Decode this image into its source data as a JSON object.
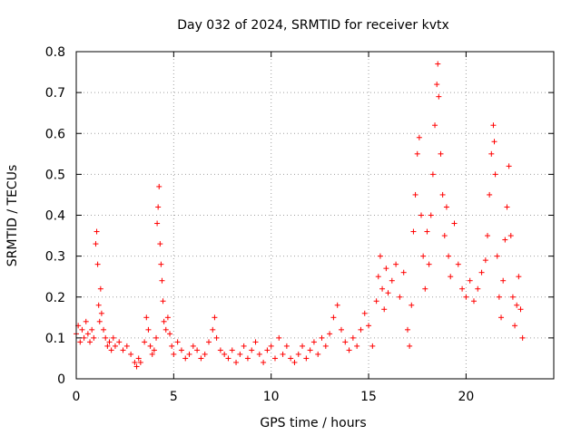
{
  "chart_data": {
    "type": "scatter",
    "title": "Day 032 of 2024, SRMTID for receiver kvtx",
    "xlabel": "GPS time / hours",
    "ylabel": "SRMTID / TECUs",
    "xlim": [
      0,
      24.5
    ],
    "ylim": [
      0,
      0.8
    ],
    "xticks": [
      0,
      5,
      10,
      15,
      20
    ],
    "xtick_labels": [
      "0",
      "5",
      "10",
      "15",
      "20"
    ],
    "yticks": [
      0,
      0.1,
      0.2,
      0.3,
      0.4,
      0.5,
      0.6,
      0.7,
      0.8
    ],
    "ytick_labels": [
      "0",
      "0.1",
      "0.2",
      "0.3",
      "0.4",
      "0.5",
      "0.6",
      "0.7",
      "0.8"
    ],
    "grid": true,
    "marker": "plus",
    "color": "#ff0000",
    "series": [
      {
        "name": "SRMTID",
        "points": [
          [
            0.0,
            0.11
          ],
          [
            0.1,
            0.13
          ],
          [
            0.2,
            0.09
          ],
          [
            0.3,
            0.12
          ],
          [
            0.4,
            0.1
          ],
          [
            0.5,
            0.14
          ],
          [
            0.6,
            0.11
          ],
          [
            0.7,
            0.09
          ],
          [
            0.8,
            0.12
          ],
          [
            0.9,
            0.1
          ],
          [
            1.0,
            0.33
          ],
          [
            1.05,
            0.36
          ],
          [
            1.1,
            0.28
          ],
          [
            1.15,
            0.18
          ],
          [
            1.2,
            0.14
          ],
          [
            1.25,
            0.22
          ],
          [
            1.3,
            0.16
          ],
          [
            1.4,
            0.12
          ],
          [
            1.5,
            0.1
          ],
          [
            1.6,
            0.08
          ],
          [
            1.7,
            0.09
          ],
          [
            1.8,
            0.07
          ],
          [
            1.9,
            0.1
          ],
          [
            2.0,
            0.08
          ],
          [
            2.2,
            0.09
          ],
          [
            2.4,
            0.07
          ],
          [
            2.6,
            0.08
          ],
          [
            2.8,
            0.06
          ],
          [
            3.0,
            0.04
          ],
          [
            3.1,
            0.03
          ],
          [
            3.2,
            0.05
          ],
          [
            3.3,
            0.04
          ],
          [
            3.5,
            0.09
          ],
          [
            3.6,
            0.15
          ],
          [
            3.7,
            0.12
          ],
          [
            3.8,
            0.08
          ],
          [
            3.9,
            0.06
          ],
          [
            4.0,
            0.07
          ],
          [
            4.1,
            0.1
          ],
          [
            4.15,
            0.38
          ],
          [
            4.2,
            0.42
          ],
          [
            4.25,
            0.47
          ],
          [
            4.3,
            0.33
          ],
          [
            4.35,
            0.28
          ],
          [
            4.4,
            0.24
          ],
          [
            4.45,
            0.19
          ],
          [
            4.5,
            0.14
          ],
          [
            4.6,
            0.12
          ],
          [
            4.7,
            0.15
          ],
          [
            4.8,
            0.11
          ],
          [
            4.9,
            0.08
          ],
          [
            5.0,
            0.06
          ],
          [
            5.2,
            0.09
          ],
          [
            5.4,
            0.07
          ],
          [
            5.6,
            0.05
          ],
          [
            5.8,
            0.06
          ],
          [
            6.0,
            0.08
          ],
          [
            6.2,
            0.07
          ],
          [
            6.4,
            0.05
          ],
          [
            6.6,
            0.06
          ],
          [
            6.8,
            0.09
          ],
          [
            7.0,
            0.12
          ],
          [
            7.1,
            0.15
          ],
          [
            7.2,
            0.1
          ],
          [
            7.4,
            0.07
          ],
          [
            7.6,
            0.06
          ],
          [
            7.8,
            0.05
          ],
          [
            8.0,
            0.07
          ],
          [
            8.2,
            0.04
          ],
          [
            8.4,
            0.06
          ],
          [
            8.6,
            0.08
          ],
          [
            8.8,
            0.05
          ],
          [
            9.0,
            0.07
          ],
          [
            9.2,
            0.09
          ],
          [
            9.4,
            0.06
          ],
          [
            9.6,
            0.04
          ],
          [
            9.8,
            0.07
          ],
          [
            10.0,
            0.08
          ],
          [
            10.2,
            0.05
          ],
          [
            10.4,
            0.1
          ],
          [
            10.6,
            0.06
          ],
          [
            10.8,
            0.08
          ],
          [
            11.0,
            0.05
          ],
          [
            11.2,
            0.04
          ],
          [
            11.4,
            0.06
          ],
          [
            11.6,
            0.08
          ],
          [
            11.8,
            0.05
          ],
          [
            12.0,
            0.07
          ],
          [
            12.2,
            0.09
          ],
          [
            12.4,
            0.06
          ],
          [
            12.6,
            0.1
          ],
          [
            12.8,
            0.08
          ],
          [
            13.0,
            0.11
          ],
          [
            13.2,
            0.15
          ],
          [
            13.4,
            0.18
          ],
          [
            13.6,
            0.12
          ],
          [
            13.8,
            0.09
          ],
          [
            14.0,
            0.07
          ],
          [
            14.2,
            0.1
          ],
          [
            14.4,
            0.08
          ],
          [
            14.6,
            0.12
          ],
          [
            14.8,
            0.16
          ],
          [
            15.0,
            0.13
          ],
          [
            15.2,
            0.08
          ],
          [
            15.4,
            0.19
          ],
          [
            15.5,
            0.25
          ],
          [
            15.6,
            0.3
          ],
          [
            15.7,
            0.22
          ],
          [
            15.8,
            0.17
          ],
          [
            15.9,
            0.27
          ],
          [
            16.0,
            0.21
          ],
          [
            16.2,
            0.24
          ],
          [
            16.4,
            0.28
          ],
          [
            16.6,
            0.2
          ],
          [
            16.8,
            0.26
          ],
          [
            17.0,
            0.12
          ],
          [
            17.1,
            0.08
          ],
          [
            17.2,
            0.18
          ],
          [
            17.3,
            0.36
          ],
          [
            17.4,
            0.45
          ],
          [
            17.5,
            0.55
          ],
          [
            17.6,
            0.59
          ],
          [
            17.7,
            0.4
          ],
          [
            17.8,
            0.3
          ],
          [
            17.9,
            0.22
          ],
          [
            18.0,
            0.36
          ],
          [
            18.1,
            0.28
          ],
          [
            18.2,
            0.4
          ],
          [
            18.3,
            0.5
          ],
          [
            18.4,
            0.62
          ],
          [
            18.5,
            0.72
          ],
          [
            18.55,
            0.77
          ],
          [
            18.6,
            0.69
          ],
          [
            18.7,
            0.55
          ],
          [
            18.8,
            0.45
          ],
          [
            18.9,
            0.35
          ],
          [
            19.0,
            0.42
          ],
          [
            19.1,
            0.3
          ],
          [
            19.2,
            0.25
          ],
          [
            19.4,
            0.38
          ],
          [
            19.6,
            0.28
          ],
          [
            19.8,
            0.22
          ],
          [
            20.0,
            0.2
          ],
          [
            20.2,
            0.24
          ],
          [
            20.4,
            0.19
          ],
          [
            20.6,
            0.22
          ],
          [
            20.8,
            0.26
          ],
          [
            21.0,
            0.29
          ],
          [
            21.1,
            0.35
          ],
          [
            21.2,
            0.45
          ],
          [
            21.3,
            0.55
          ],
          [
            21.4,
            0.62
          ],
          [
            21.45,
            0.58
          ],
          [
            21.5,
            0.5
          ],
          [
            21.6,
            0.3
          ],
          [
            21.7,
            0.2
          ],
          [
            21.8,
            0.15
          ],
          [
            21.9,
            0.24
          ],
          [
            22.0,
            0.34
          ],
          [
            22.1,
            0.42
          ],
          [
            22.2,
            0.52
          ],
          [
            22.3,
            0.35
          ],
          [
            22.4,
            0.2
          ],
          [
            22.5,
            0.13
          ],
          [
            22.6,
            0.18
          ],
          [
            22.7,
            0.25
          ],
          [
            22.8,
            0.17
          ],
          [
            22.9,
            0.1
          ]
        ]
      }
    ]
  }
}
